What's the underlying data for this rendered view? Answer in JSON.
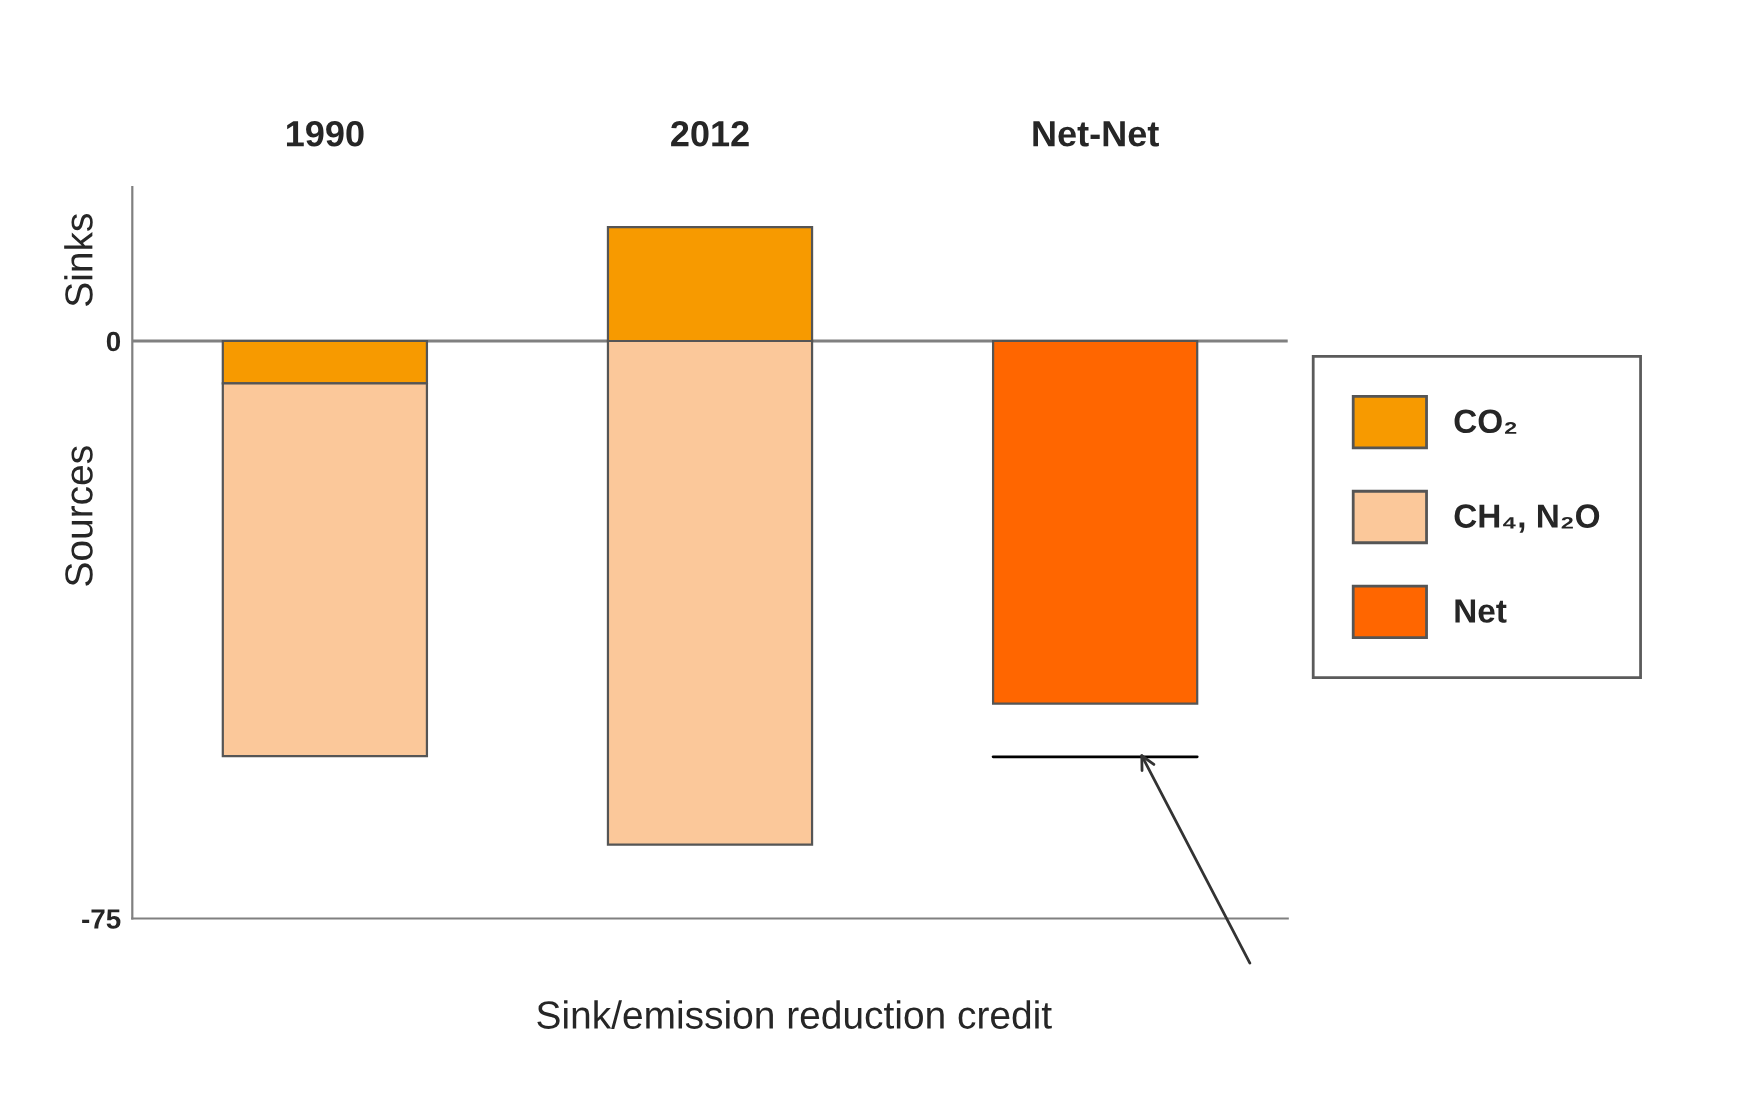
{
  "chart_data": {
    "type": "bar",
    "stacked": true,
    "categories": [
      "1990",
      "2012",
      "Net-Net"
    ],
    "series": [
      {
        "name": "CO₂",
        "color": "#f79a00",
        "values": [
          -5.5,
          14.8,
          null
        ]
      },
      {
        "name": "CH₄, N₂O",
        "color": "#fbc89a",
        "values": [
          -48.4,
          -65.4,
          null
        ]
      },
      {
        "name": "Net",
        "color": "#ff6600",
        "values": [
          null,
          null,
          -47.1
        ]
      }
    ],
    "ylim": [
      -75,
      20
    ],
    "yticks": [
      0,
      {
        "value": -75,
        "label": "-75"
      }
    ],
    "ref_lines": [
      {
        "axis": "y",
        "value": 0,
        "color": "#808080"
      },
      {
        "axis": "y",
        "value": -54,
        "color": "#000000"
      }
    ],
    "annotations": [
      "Sinks",
      "Sources",
      "Sink/emission reduction credit"
    ],
    "legend": "right",
    "grid": false
  }
}
